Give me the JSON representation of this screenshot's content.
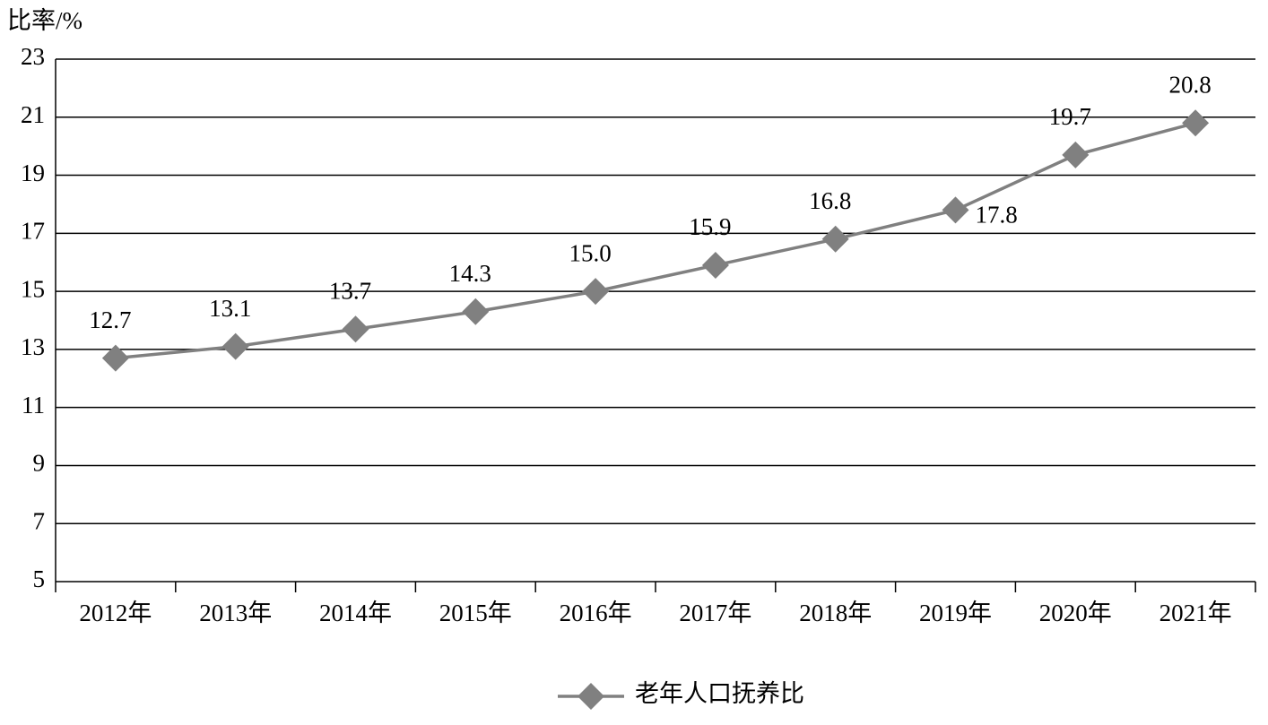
{
  "chart_data": {
    "type": "line",
    "y_label": "比率/%",
    "categories": [
      "2012年",
      "2013年",
      "2014年",
      "2015年",
      "2016年",
      "2017年",
      "2018年",
      "2019年",
      "2020年",
      "2021年"
    ],
    "series": [
      {
        "name": "老年人口抚养比",
        "color": "#808080",
        "values": [
          12.7,
          13.1,
          13.7,
          14.3,
          15.0,
          15.9,
          16.8,
          17.8,
          19.7,
          20.8
        ],
        "value_labels": [
          "12.7",
          "13.1",
          "13.7",
          "14.3",
          "15.0",
          "15.9",
          "16.8",
          "17.8",
          "19.7",
          "20.8"
        ]
      }
    ],
    "ylim": [
      5,
      23
    ],
    "yticks": [
      5,
      7,
      9,
      11,
      13,
      15,
      17,
      19,
      21,
      23
    ],
    "grid": true,
    "legend": "bottom"
  }
}
